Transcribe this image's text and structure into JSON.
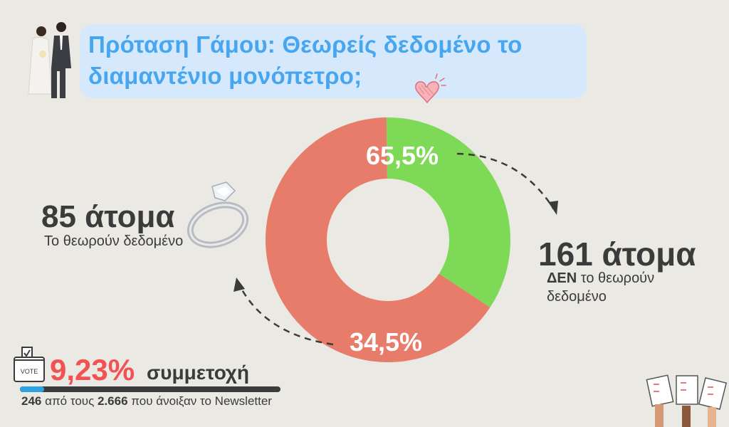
{
  "title": {
    "line1": "Πρόταση Γάμου: Θεωρείς δεδομένο το",
    "line2": "διαμαντένιο μονόπετρο;"
  },
  "left_stat": {
    "count": "85 άτομα",
    "desc": "Το θεωρούν δεδομένο"
  },
  "right_stat": {
    "count": "161 άτομα",
    "desc_bold": "ΔΕΝ",
    "desc_rest": "το θεωρούν",
    "desc_line2": "δεδομένο"
  },
  "participation": {
    "percent": "9,23%",
    "label": "συμμετοχή",
    "vote_label": "VOTE",
    "fraction": 0.0923,
    "count": "246",
    "text_mid": "από τους",
    "total": "2.666",
    "text_end": "που άνοιξαν το Newsletter"
  },
  "colors": {
    "no": "#e87c6a",
    "yes": "#7ed957",
    "title": "#47a6f0",
    "title_bg": "#d6e8fb",
    "accent": "#f25252",
    "bar": "#2ea3e3"
  },
  "icons": [
    "bride-groom-icon",
    "heart-icon",
    "diamond-ring-icon",
    "ballot-box-icon",
    "voting-hands-icon"
  ],
  "chart_data": {
    "type": "pie",
    "style": "donut",
    "categories": [
      "Δεν το θεωρούν δεδομένο",
      "Το θεωρούν δεδομένο"
    ],
    "values": [
      65.5,
      34.5
    ],
    "value_labels": [
      "65,5%",
      "34,5%"
    ],
    "counts": [
      161,
      85
    ]
  }
}
